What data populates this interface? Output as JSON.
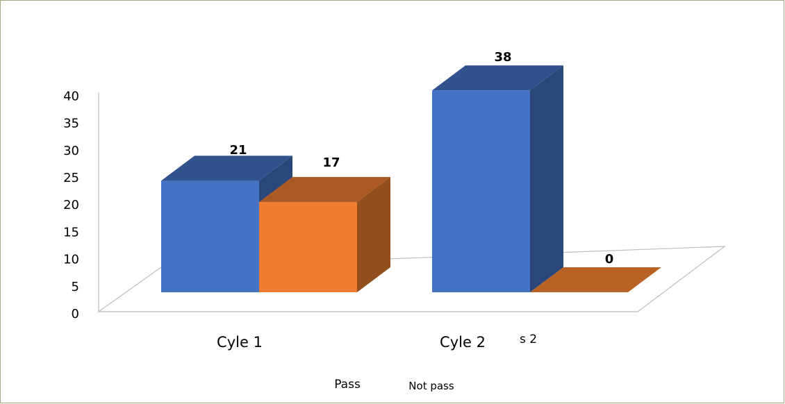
{
  "chart_data": {
    "type": "bar",
    "categories": [
      "Cyle 1",
      "Cyle 2"
    ],
    "series": [
      {
        "name": "Pass",
        "values": [
          21,
          38
        ],
        "color": "#4472c4"
      },
      {
        "name": "Not pass",
        "values": [
          17,
          0
        ],
        "color": "#ed7d31"
      }
    ],
    "data_labels": [
      "21",
      "17",
      "38",
      "0"
    ],
    "yticks": [
      "0",
      "5",
      "10",
      "15",
      "20",
      "25",
      "30",
      "35",
      "40"
    ],
    "ylim": [
      0,
      40
    ],
    "stray_label": "s 2",
    "legend_position": "bottom",
    "grid": false,
    "style": "3d-clustered-column"
  }
}
